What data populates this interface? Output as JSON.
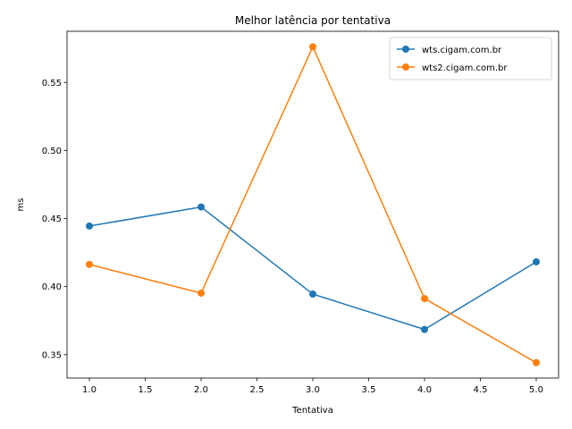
{
  "chart_data": {
    "type": "line",
    "title": "Melhor latência por tentativa",
    "xlabel": "Tentativa",
    "ylabel": "ms",
    "x": [
      1.0,
      2.0,
      3.0,
      4.0,
      5.0
    ],
    "xlim": [
      0.8,
      5.2
    ],
    "ylim": [
      0.3328,
      0.5876
    ],
    "xticks": [
      1.0,
      1.5,
      2.0,
      2.5,
      3.0,
      3.5,
      4.0,
      4.5,
      5.0
    ],
    "xtick_labels": [
      "1.0",
      "1.5",
      "2.0",
      "2.5",
      "3.0",
      "3.5",
      "4.0",
      "4.5",
      "5.0"
    ],
    "yticks": [
      0.35,
      0.4,
      0.45,
      0.5,
      0.55
    ],
    "ytick_labels": [
      "0.35",
      "0.40",
      "0.45",
      "0.50",
      "0.55"
    ],
    "grid": false,
    "legend_position": "top-right",
    "series": [
      {
        "name": "wts.cigam.com.br",
        "color": "#1f77b4",
        "marker": "circle",
        "values": [
          0.4445,
          0.4585,
          0.3945,
          0.3685,
          0.4182
        ]
      },
      {
        "name": "wts2.cigam.com.br",
        "color": "#ff7f0e",
        "marker": "circle",
        "values": [
          0.4163,
          0.3952,
          0.5762,
          0.3912,
          0.3441
        ]
      }
    ]
  }
}
